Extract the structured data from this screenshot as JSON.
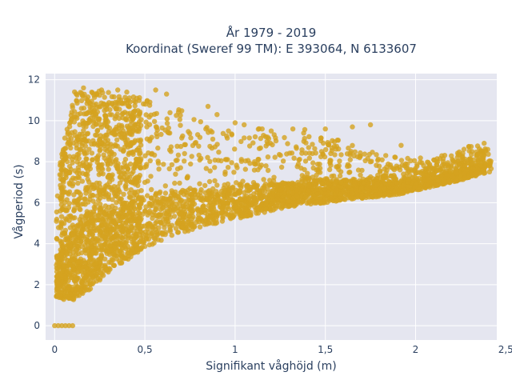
{
  "chart_data": {
    "type": "scatter",
    "title_lines": [
      "År 1979 - 2019",
      "Koordinat (Sweref 99 TM): E 393064, N 6133607"
    ],
    "xlabel": "Signifikant våghöjd (m)",
    "ylabel": "Vågperiod (s)",
    "xlim": [
      -0.05,
      2.45
    ],
    "ylim": [
      -0.7,
      12.3
    ],
    "x_ticks": [
      0,
      0.5,
      1,
      1.5,
      2,
      2.5
    ],
    "x_tick_labels": [
      "0",
      "0,5",
      "1",
      "1,5",
      "2",
      "2,5"
    ],
    "y_ticks": [
      0,
      2,
      4,
      6,
      8,
      10,
      12
    ],
    "y_tick_labels": [
      "0",
      "2",
      "4",
      "6",
      "8",
      "10",
      "12"
    ],
    "grid": true,
    "legend": "none",
    "marker_color": "#D4A21F",
    "plot_background": "#E5E6F0",
    "grid_color": "#FFFFFF",
    "envelope": {
      "x": [
        0.0,
        0.1,
        0.2,
        0.3,
        0.4,
        0.5,
        0.6,
        0.7,
        0.8,
        0.9,
        1.0,
        1.1,
        1.2,
        1.3,
        1.4,
        1.5,
        1.6,
        1.7,
        1.8,
        1.9,
        2.0,
        2.1,
        2.2,
        2.3,
        2.4
      ],
      "y_lower": [
        1.3,
        1.2,
        1.8,
        2.6,
        3.2,
        3.8,
        4.2,
        4.5,
        4.8,
        5.0,
        5.2,
        5.4,
        5.6,
        5.8,
        5.9,
        6.0,
        6.1,
        6.2,
        6.3,
        6.4,
        6.6,
        6.8,
        7.0,
        7.2,
        7.5
      ],
      "y_upper": [
        6.5,
        11.4,
        11.5,
        11.4,
        11.2,
        11.1,
        10.8,
        10.5,
        10.2,
        9.4,
        9.8,
        9.7,
        9.5,
        9.1,
        9.7,
        9.2,
        9.0,
        8.6,
        8.4,
        8.2,
        8.2,
        8.3,
        8.4,
        8.8,
        8.8
      ]
    },
    "zero_period_points": {
      "x": [
        0.0,
        0.02,
        0.04,
        0.06,
        0.08,
        0.1
      ],
      "y": [
        0,
        0,
        0,
        0,
        0,
        0
      ]
    },
    "outliers": {
      "x": [
        0.16,
        0.26,
        0.35,
        0.4,
        0.56,
        0.62,
        0.85,
        0.9,
        1.0,
        1.05,
        1.15,
        1.2,
        1.32,
        1.38,
        1.5,
        1.65,
        1.75,
        1.92,
        2.38,
        2.4
      ],
      "y": [
        11.6,
        11.5,
        11.5,
        11.4,
        11.5,
        11.3,
        10.7,
        10.3,
        9.9,
        9.8,
        9.6,
        9.5,
        9.6,
        9.4,
        9.6,
        9.7,
        9.8,
        8.8,
        8.9,
        8.6
      ]
    }
  }
}
